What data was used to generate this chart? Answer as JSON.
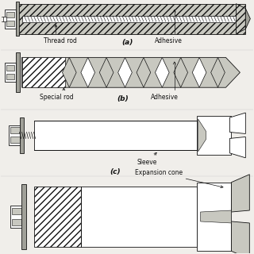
{
  "background_color": "#f0eeea",
  "line_color": "#111111",
  "fill_light": "#c8c8c0",
  "fill_white": "#ffffff",
  "fill_gray": "#888880",
  "fill_medium": "#a0a098",
  "labels": {
    "thread_rod": "Thread rod",
    "adhesive_a": "Adhesive",
    "label_a": "(a)",
    "special_rod": "Special rod",
    "adhesive_b": "Adhesive",
    "label_b": "(b)",
    "sleeve": "Sleeve",
    "label_c": "(c)",
    "expansion_cone": "Expansion cone"
  },
  "font_size": 5.5,
  "label_font_size": 6.5,
  "fig_width": 3.2,
  "fig_height": 3.2,
  "dpi": 100
}
